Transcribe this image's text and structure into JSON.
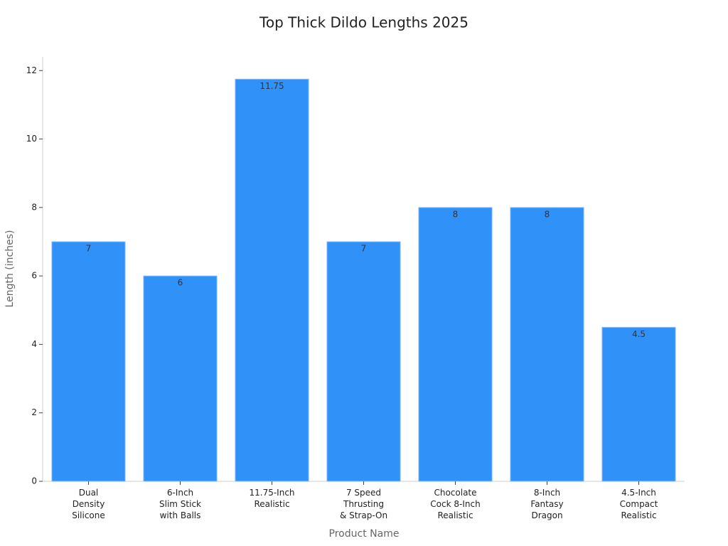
{
  "chart_data": {
    "type": "bar",
    "title": "Top Thick Dildo Lengths 2025",
    "x_label": "Product Name",
    "y_label": "Length (inches)",
    "categories": [
      "Dual\nDensity\nSilicone",
      "6-Inch\nSlim Stick\nwith Balls",
      "11.75-Inch\nRealistic",
      "7 Speed\nThrusting\n& Strap-On",
      "Chocolate\nCock 8-Inch\nRealistic",
      "8-Inch\nFantasy\nDragon",
      "4.5-Inch\nCompact\nRealistic"
    ],
    "values": [
      7,
      6,
      11.75,
      7,
      8,
      8,
      4.5
    ],
    "color": "#3091f9",
    "ylim": [
      0,
      12.4
    ],
    "yticks": [
      0,
      2,
      4,
      6,
      8,
      10,
      12
    ],
    "grid": false
  }
}
